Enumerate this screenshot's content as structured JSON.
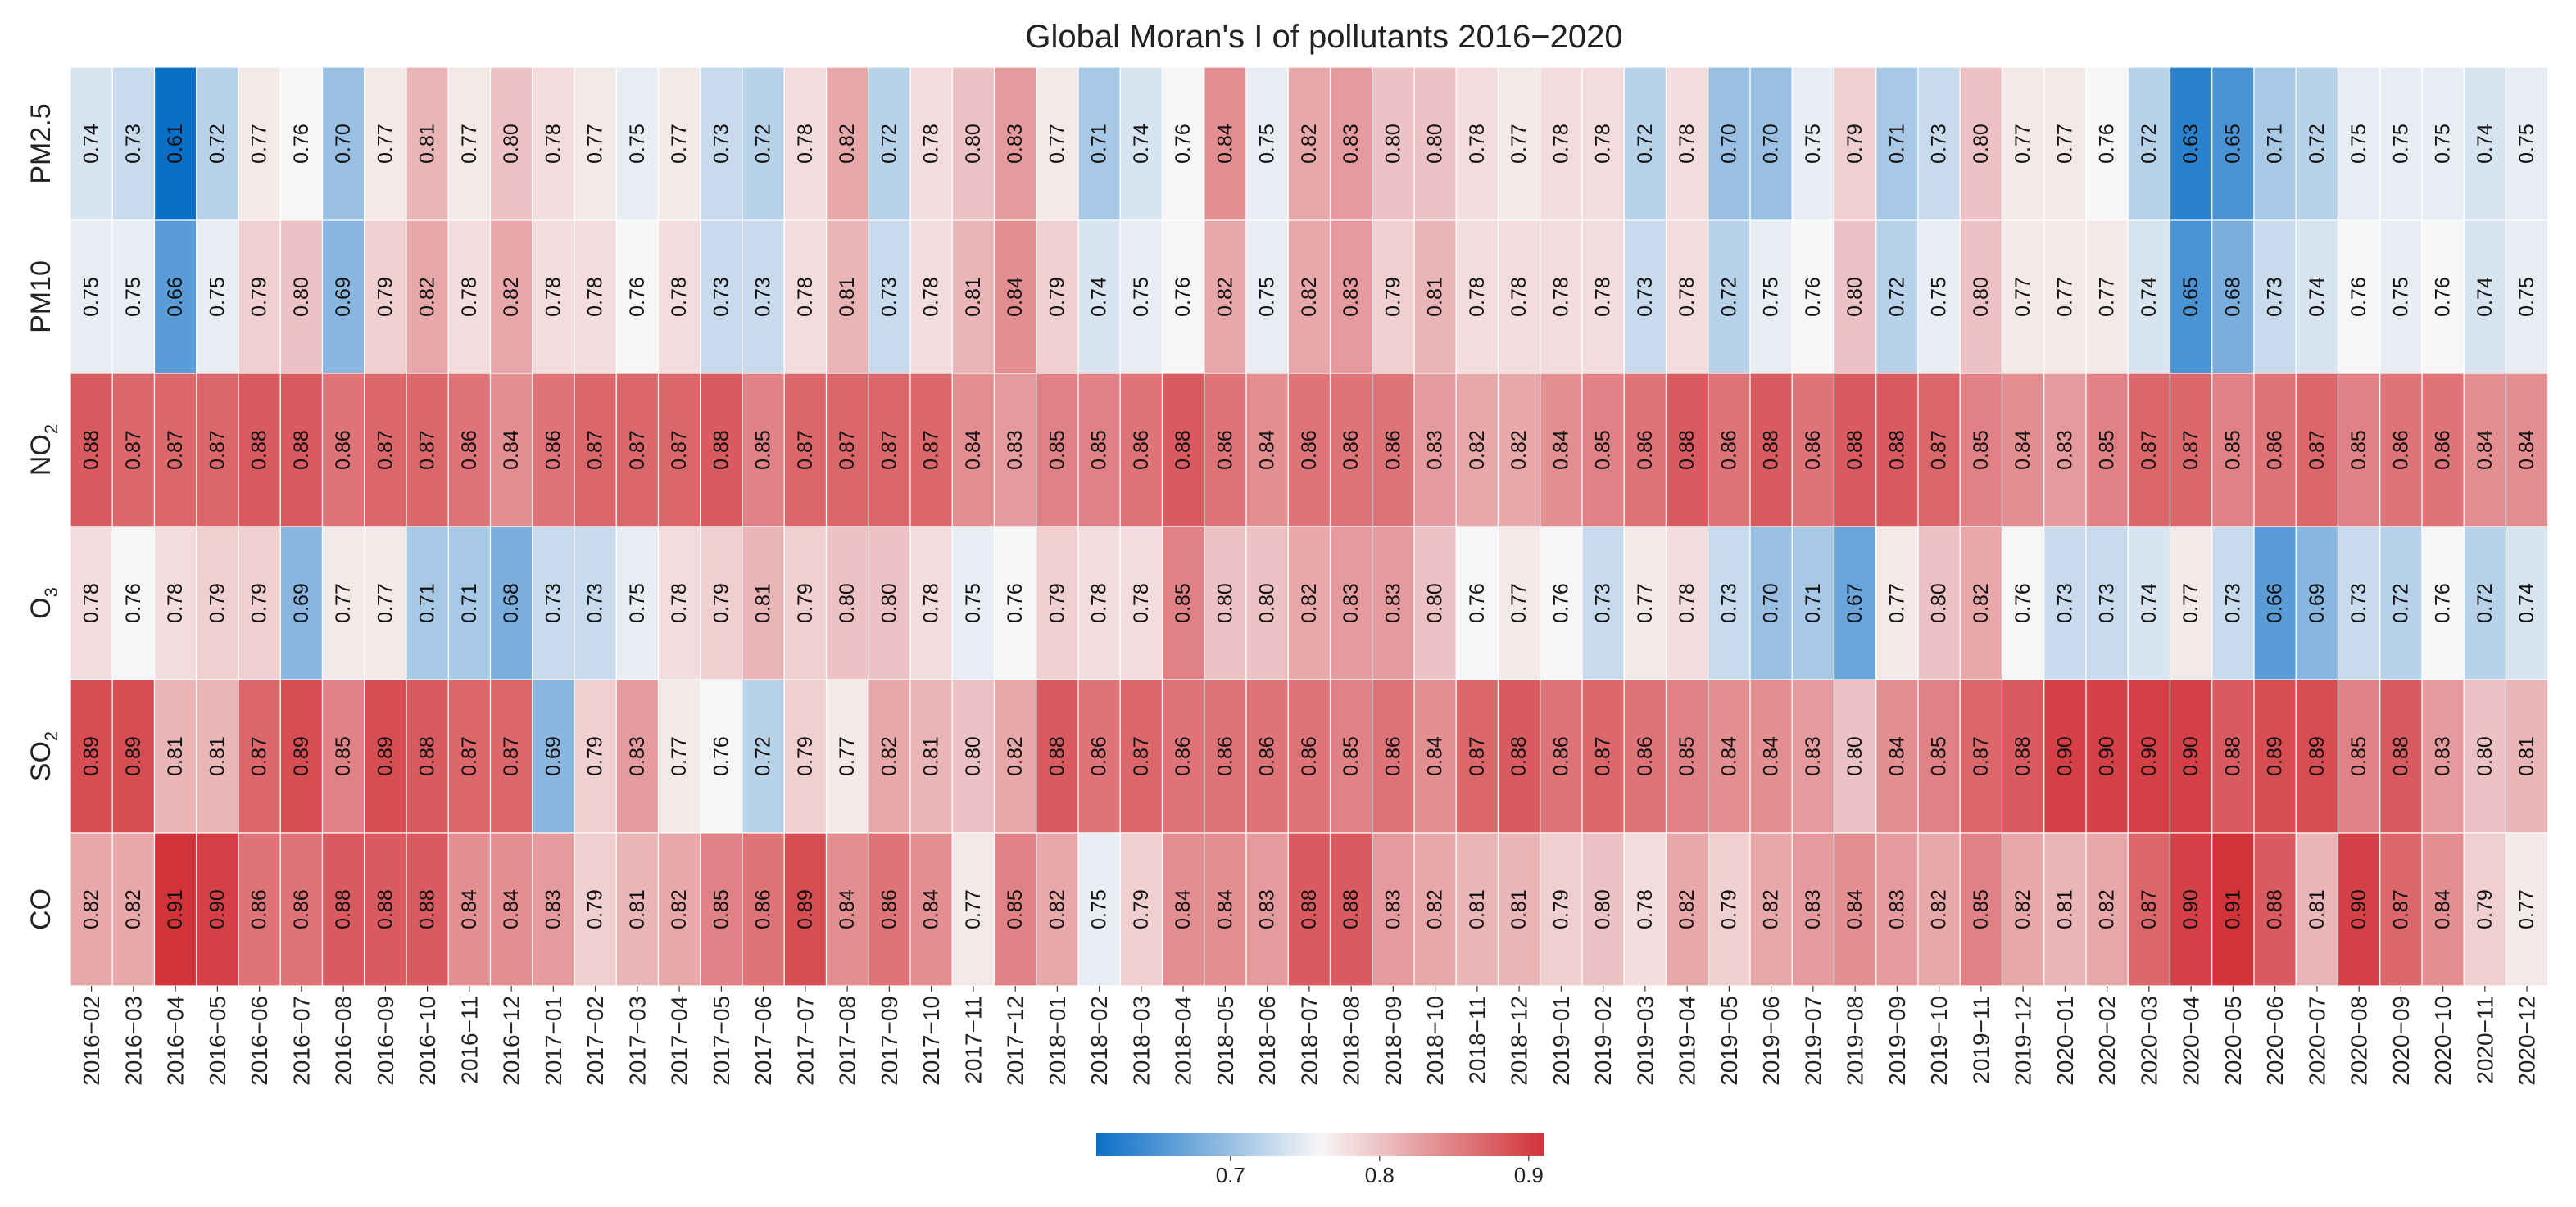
{
  "chart_data": {
    "type": "heatmap",
    "title": "Global Moran's I of pollutants 2016−2020",
    "xlabel": "",
    "ylabel": "",
    "rows": [
      {
        "label": "PM2.5",
        "base": "PM2.5",
        "sub": ""
      },
      {
        "label": "PM10",
        "base": "PM10",
        "sub": ""
      },
      {
        "label": "NO2",
        "base": "NO",
        "sub": "2"
      },
      {
        "label": "O3",
        "base": "O",
        "sub": "3"
      },
      {
        "label": "SO2",
        "base": "SO",
        "sub": "2"
      },
      {
        "label": "CO",
        "base": "CO",
        "sub": ""
      }
    ],
    "columns": [
      "2016−02",
      "2016−03",
      "2016−04",
      "2016−05",
      "2016−06",
      "2016−07",
      "2016−08",
      "2016−09",
      "2016−10",
      "2016−11",
      "2016−12",
      "2017−01",
      "2017−02",
      "2017−03",
      "2017−04",
      "2017−05",
      "2017−06",
      "2017−07",
      "2017−08",
      "2017−09",
      "2017−10",
      "2017−11",
      "2017−12",
      "2018−01",
      "2018−02",
      "2018−03",
      "2018−04",
      "2018−05",
      "2018−06",
      "2018−07",
      "2018−08",
      "2018−09",
      "2018−10",
      "2018−11",
      "2018−12",
      "2019−01",
      "2019−02",
      "2019−03",
      "2019−04",
      "2019−05",
      "2019−06",
      "2019−07",
      "2019−08",
      "2019−09",
      "2019−10",
      "2019−11",
      "2019−12",
      "2020−01",
      "2020−02",
      "2020−03",
      "2020−04",
      "2020−05",
      "2020−06",
      "2020−07",
      "2020−08",
      "2020−09",
      "2020−10",
      "2020−11",
      "2020−12"
    ],
    "values": [
      [
        0.74,
        0.73,
        0.61,
        0.72,
        0.77,
        0.76,
        0.7,
        0.77,
        0.81,
        0.77,
        0.8,
        0.78,
        0.77,
        0.75,
        0.77,
        0.73,
        0.72,
        0.78,
        0.82,
        0.72,
        0.78,
        0.8,
        0.83,
        0.77,
        0.71,
        0.74,
        0.76,
        0.84,
        0.75,
        0.82,
        0.83,
        0.8,
        0.8,
        0.78,
        0.77,
        0.78,
        0.78,
        0.72,
        0.78,
        0.7,
        0.7,
        0.75,
        0.79,
        0.71,
        0.73,
        0.8,
        0.77,
        0.77,
        0.76,
        0.72,
        0.63,
        0.65,
        0.71,
        0.72,
        0.75,
        0.75,
        0.75,
        0.74,
        0.75
      ],
      [
        0.75,
        0.75,
        0.66,
        0.75,
        0.79,
        0.8,
        0.69,
        0.79,
        0.82,
        0.78,
        0.82,
        0.78,
        0.78,
        0.76,
        0.78,
        0.73,
        0.73,
        0.78,
        0.81,
        0.73,
        0.78,
        0.81,
        0.84,
        0.79,
        0.74,
        0.75,
        0.76,
        0.82,
        0.75,
        0.82,
        0.83,
        0.79,
        0.81,
        0.78,
        0.78,
        0.78,
        0.78,
        0.73,
        0.78,
        0.72,
        0.75,
        0.76,
        0.8,
        0.72,
        0.75,
        0.8,
        0.77,
        0.77,
        0.77,
        0.74,
        0.65,
        0.68,
        0.73,
        0.74,
        0.76,
        0.75,
        0.76,
        0.74,
        0.75
      ],
      [
        0.88,
        0.87,
        0.87,
        0.87,
        0.88,
        0.88,
        0.86,
        0.87,
        0.87,
        0.86,
        0.84,
        0.86,
        0.87,
        0.87,
        0.87,
        0.88,
        0.85,
        0.87,
        0.87,
        0.87,
        0.87,
        0.84,
        0.83,
        0.85,
        0.85,
        0.86,
        0.88,
        0.86,
        0.84,
        0.86,
        0.86,
        0.86,
        0.83,
        0.82,
        0.82,
        0.84,
        0.85,
        0.86,
        0.88,
        0.86,
        0.88,
        0.86,
        0.88,
        0.88,
        0.87,
        0.85,
        0.84,
        0.83,
        0.85,
        0.87,
        0.87,
        0.85,
        0.86,
        0.87,
        0.85,
        0.86,
        0.86,
        0.84,
        0.84
      ],
      [
        0.78,
        0.76,
        0.78,
        0.79,
        0.79,
        0.69,
        0.77,
        0.77,
        0.71,
        0.71,
        0.68,
        0.73,
        0.73,
        0.75,
        0.78,
        0.79,
        0.81,
        0.79,
        0.8,
        0.8,
        0.78,
        0.75,
        0.76,
        0.79,
        0.78,
        0.78,
        0.85,
        0.8,
        0.8,
        0.82,
        0.83,
        0.83,
        0.8,
        0.76,
        0.77,
        0.76,
        0.73,
        0.77,
        0.78,
        0.73,
        0.7,
        0.71,
        0.67,
        0.77,
        0.8,
        0.82,
        0.76,
        0.73,
        0.73,
        0.74,
        0.77,
        0.73,
        0.66,
        0.69,
        0.73,
        0.72,
        0.76,
        0.72,
        0.74
      ],
      [
        0.89,
        0.89,
        0.81,
        0.81,
        0.87,
        0.89,
        0.85,
        0.89,
        0.88,
        0.87,
        0.87,
        0.69,
        0.79,
        0.83,
        0.77,
        0.76,
        0.72,
        0.79,
        0.77,
        0.82,
        0.81,
        0.8,
        0.82,
        0.88,
        0.86,
        0.87,
        0.86,
        0.86,
        0.86,
        0.86,
        0.85,
        0.86,
        0.84,
        0.87,
        0.88,
        0.86,
        0.87,
        0.86,
        0.85,
        0.84,
        0.84,
        0.83,
        0.8,
        0.84,
        0.85,
        0.87,
        0.88,
        0.9,
        0.9,
        0.9,
        0.9,
        0.88,
        0.89,
        0.89,
        0.85,
        0.88,
        0.83,
        0.8,
        0.81
      ],
      [
        0.82,
        0.82,
        0.91,
        0.9,
        0.86,
        0.86,
        0.88,
        0.88,
        0.88,
        0.84,
        0.84,
        0.83,
        0.79,
        0.81,
        0.82,
        0.85,
        0.86,
        0.89,
        0.84,
        0.86,
        0.84,
        0.77,
        0.85,
        0.82,
        0.75,
        0.79,
        0.84,
        0.84,
        0.83,
        0.88,
        0.88,
        0.83,
        0.82,
        0.81,
        0.81,
        0.79,
        0.8,
        0.78,
        0.82,
        0.79,
        0.82,
        0.83,
        0.84,
        0.83,
        0.82,
        0.85,
        0.82,
        0.81,
        0.82,
        0.87,
        0.9,
        0.91,
        0.88,
        0.81,
        0.9,
        0.87,
        0.84,
        0.79,
        0.77
      ]
    ],
    "colorbar": {
      "vmin": 0.61,
      "vmax": 0.91,
      "center": 0.76,
      "ticks": [
        0.7,
        0.8,
        0.9
      ],
      "tick_labels": [
        "0.7",
        "0.8",
        "0.9"
      ],
      "colors": {
        "low": "#0b6fc7",
        "mid": "#f7f6f6",
        "high": "#d13339"
      }
    }
  }
}
